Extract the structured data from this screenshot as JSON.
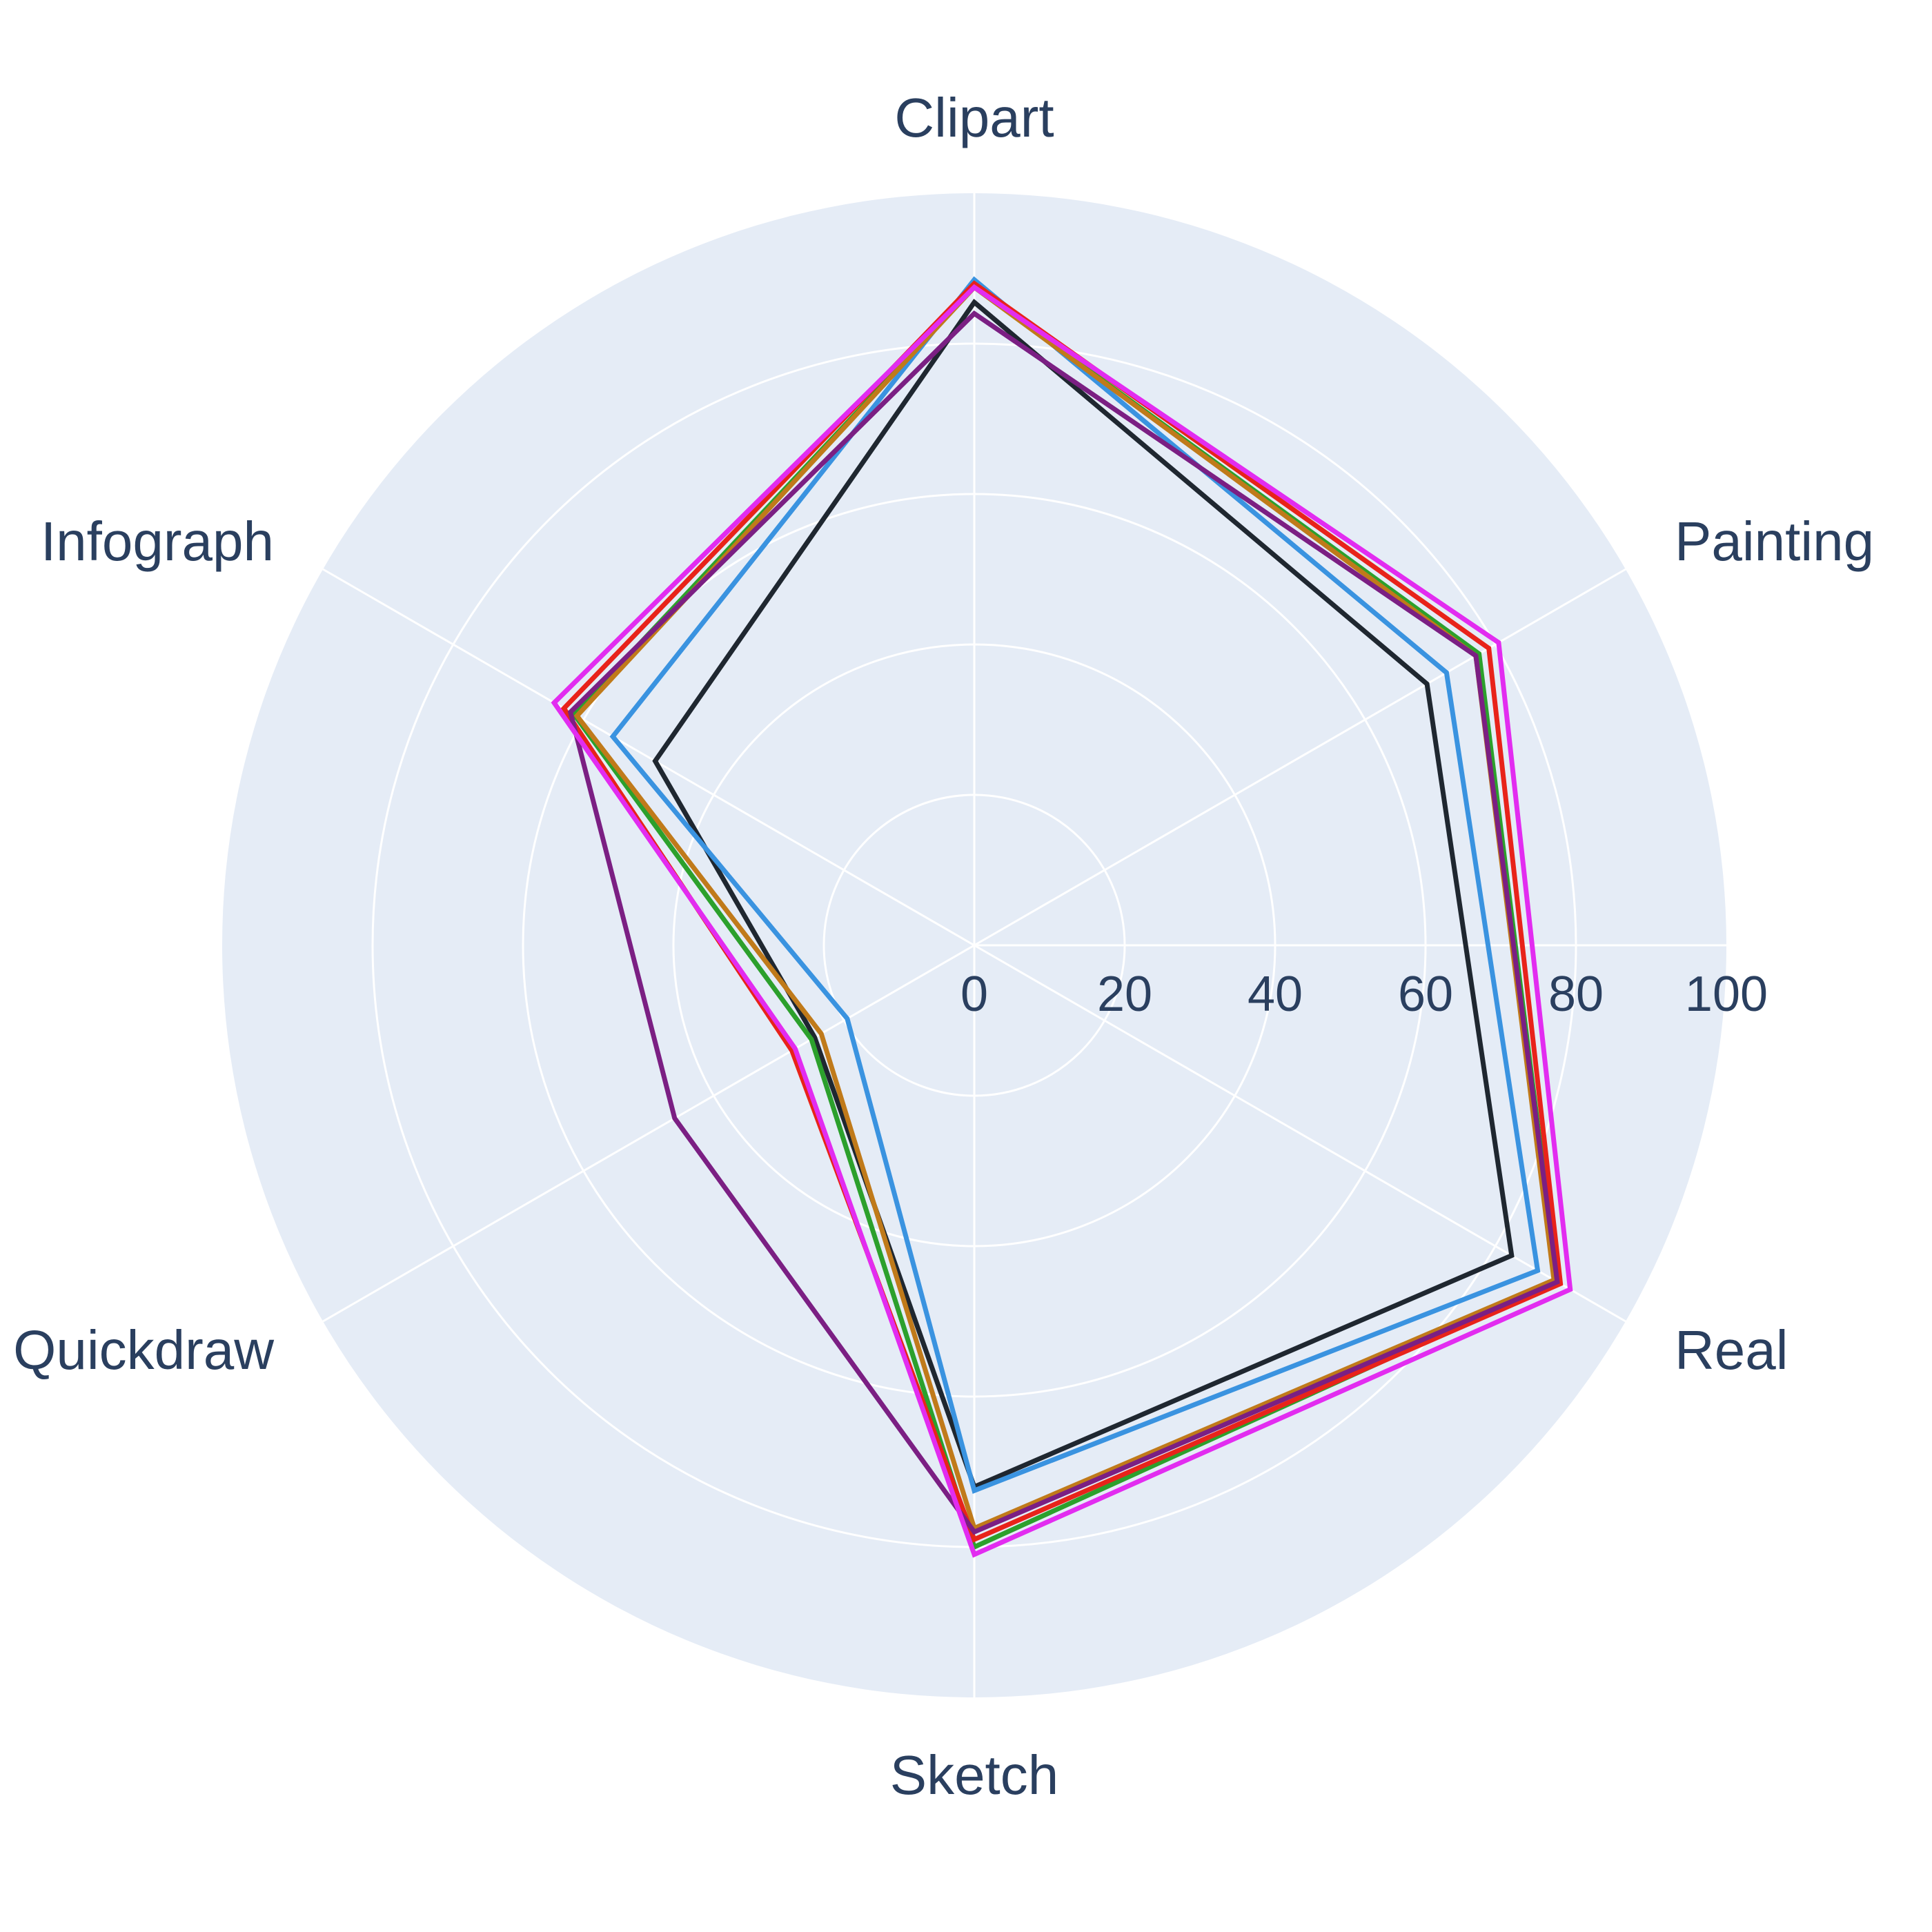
{
  "chart_data": {
    "type": "radar",
    "axes": [
      "Clipart",
      "Painting",
      "Real",
      "Sketch",
      "Quickdraw",
      "Infograph"
    ],
    "radial_range": [
      0,
      100
    ],
    "radial_ticks": [
      "0",
      "20",
      "40",
      "60",
      "80",
      "100"
    ],
    "grid": true,
    "colors": {
      "polar_bg": "#e5ecf6",
      "grid": "#ffffff",
      "text": "#2a3f5f"
    },
    "series": [
      {
        "color": "#1f2730",
        "values": [
          85.5,
          69.5,
          82.5,
          72.0,
          24.5,
          49.0
        ]
      },
      {
        "color": "#3a93e0",
        "values": [
          88.5,
          72.5,
          86.5,
          72.5,
          19.5,
          55.5
        ]
      },
      {
        "color": "#2ca02c",
        "values": [
          87.5,
          77.5,
          89.5,
          80.0,
          25.0,
          61.5
        ]
      },
      {
        "color": "#c07a1a",
        "values": [
          87.5,
          77.0,
          89.0,
          77.5,
          23.5,
          61.0
        ]
      },
      {
        "color": "#e8231a",
        "values": [
          88.0,
          79.0,
          90.0,
          79.0,
          28.0,
          63.0
        ]
      },
      {
        "color": "#7b1f83",
        "values": [
          84.0,
          77.0,
          89.5,
          78.0,
          46.0,
          62.0
        ]
      },
      {
        "color": "#e22cf0",
        "values": [
          87.5,
          80.5,
          91.5,
          81.0,
          27.5,
          64.5
        ]
      }
    ]
  }
}
